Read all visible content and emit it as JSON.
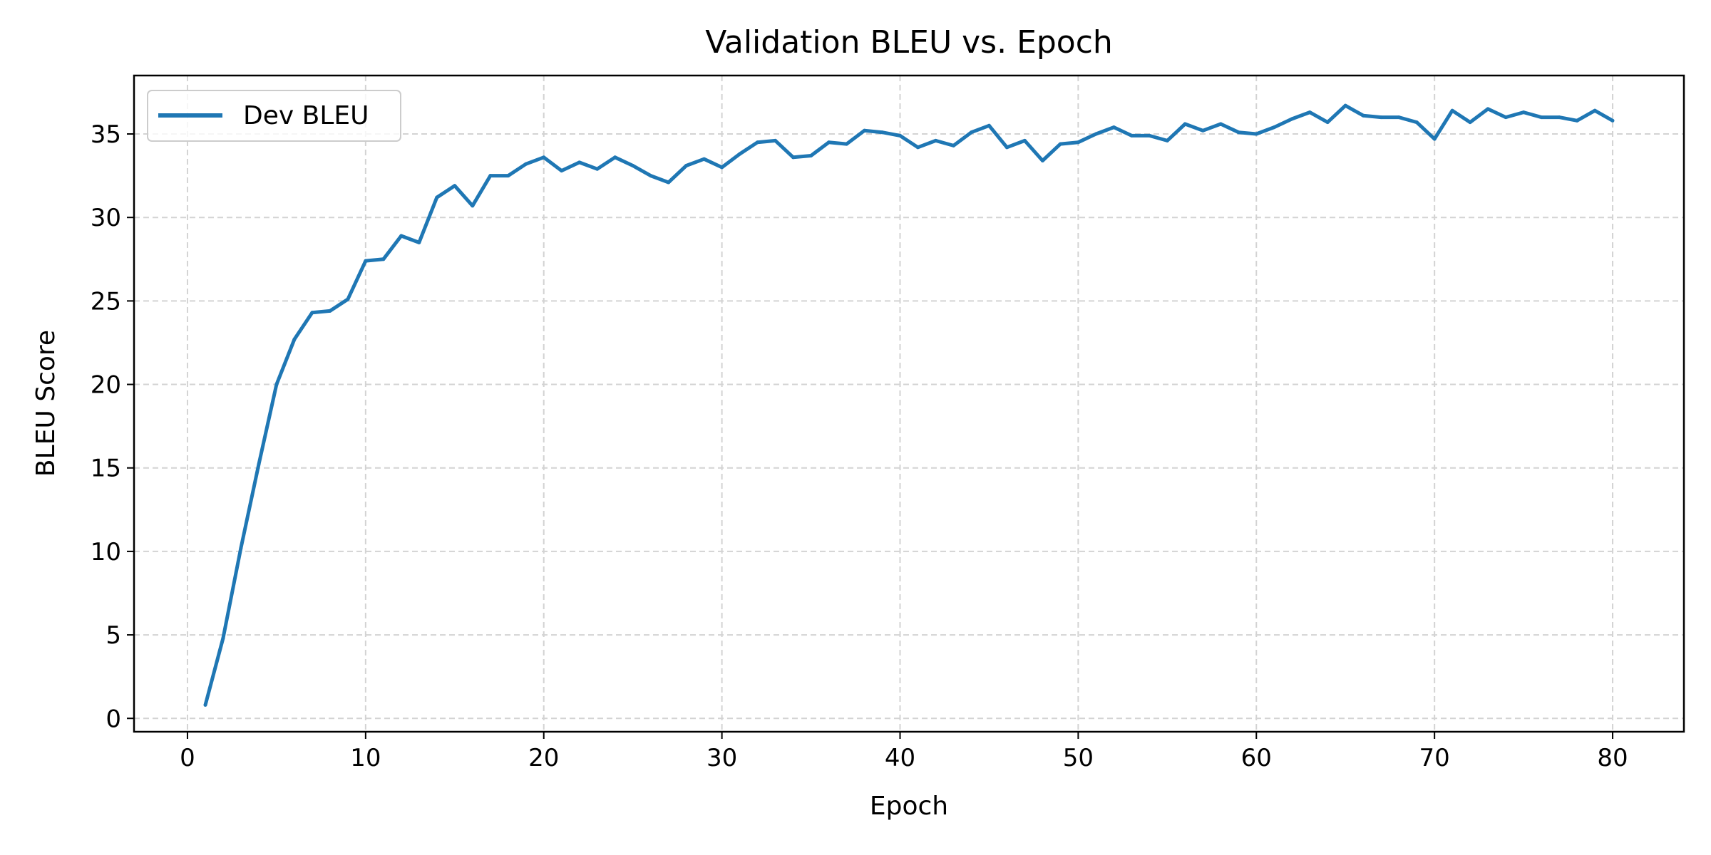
{
  "chart_data": {
    "type": "line",
    "title": "Validation BLEU vs. Epoch",
    "xlabel": "Epoch",
    "ylabel": "BLEU Score",
    "xlim": [
      -3,
      84
    ],
    "ylim": [
      -0.8,
      38.5
    ],
    "xticks": [
      0,
      10,
      20,
      30,
      40,
      50,
      60,
      70,
      80
    ],
    "yticks": [
      0,
      5,
      10,
      15,
      20,
      25,
      30,
      35
    ],
    "grid": true,
    "legend_position": "upper-left",
    "colors": {
      "series": "#1f77b4",
      "grid": "#d3d3d3",
      "axes": "#000000"
    },
    "series": [
      {
        "name": "Dev BLEU",
        "x": [
          1,
          2,
          3,
          4,
          5,
          6,
          7,
          8,
          9,
          10,
          11,
          12,
          13,
          14,
          15,
          16,
          17,
          18,
          19,
          20,
          21,
          22,
          23,
          24,
          25,
          26,
          27,
          28,
          29,
          30,
          31,
          32,
          33,
          34,
          35,
          36,
          37,
          38,
          39,
          40,
          41,
          42,
          43,
          44,
          45,
          46,
          47,
          48,
          49,
          50,
          51,
          52,
          53,
          54,
          55,
          56,
          57,
          58,
          59,
          60,
          61,
          62,
          63,
          64,
          65,
          66,
          67,
          68,
          69,
          70,
          71,
          72,
          73,
          74,
          75,
          76,
          77,
          78,
          79,
          80
        ],
        "y": [
          0.8,
          4.8,
          10.2,
          15.2,
          20.0,
          22.7,
          24.3,
          24.4,
          25.1,
          27.4,
          27.5,
          28.9,
          28.5,
          31.2,
          31.9,
          30.7,
          32.5,
          32.5,
          33.2,
          33.6,
          32.8,
          33.3,
          32.9,
          33.6,
          33.1,
          32.5,
          32.1,
          33.1,
          33.5,
          33.0,
          33.8,
          34.5,
          34.6,
          33.6,
          33.7,
          34.5,
          34.4,
          35.2,
          35.1,
          34.9,
          34.2,
          34.6,
          34.3,
          35.1,
          35.5,
          34.2,
          34.6,
          33.4,
          34.4,
          34.5,
          35.0,
          35.4,
          34.9,
          34.9,
          34.6,
          35.6,
          35.2,
          35.6,
          35.1,
          35.0,
          35.4,
          35.9,
          36.3,
          35.7,
          36.7,
          36.1,
          36.0,
          36.0,
          35.7,
          34.7,
          36.4,
          35.7,
          36.5,
          36.0,
          36.3,
          36.0,
          36.0,
          35.8,
          36.4,
          35.8
        ]
      }
    ]
  }
}
